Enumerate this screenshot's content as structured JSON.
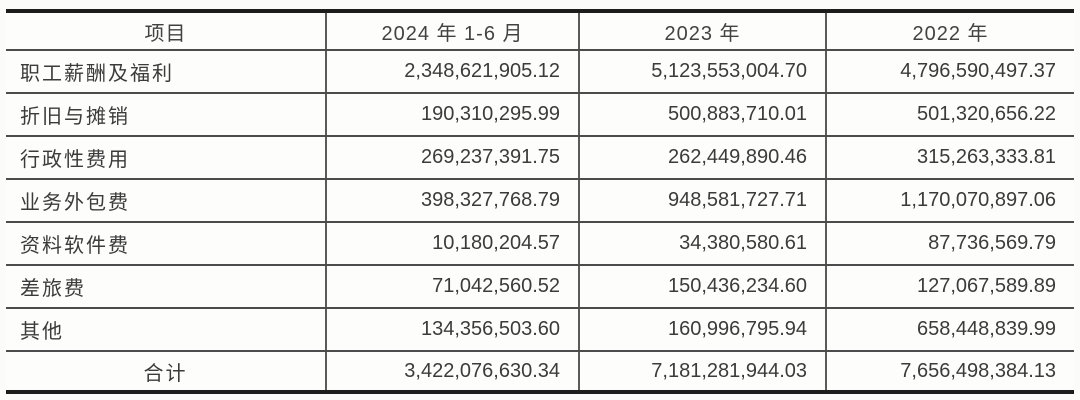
{
  "table": {
    "columns": [
      {
        "label": "项目"
      },
      {
        "label": "2024 年 1-6 月"
      },
      {
        "label": "2023 年"
      },
      {
        "label": "2022 年"
      }
    ],
    "rows": [
      {
        "item": "职工薪酬及福利",
        "values": [
          "2,348,621,905.12",
          "5,123,553,004.70",
          "4,796,590,497.37"
        ]
      },
      {
        "item": "折旧与摊销",
        "values": [
          "190,310,295.99",
          "500,883,710.01",
          "501,320,656.22"
        ]
      },
      {
        "item": "行政性费用",
        "values": [
          "269,237,391.75",
          "262,449,890.46",
          "315,263,333.81"
        ]
      },
      {
        "item": "业务外包费",
        "values": [
          "398,327,768.79",
          "948,581,727.71",
          "1,170,070,897.06"
        ]
      },
      {
        "item": "资料软件费",
        "values": [
          "10,180,204.57",
          "34,380,580.61",
          "87,736,569.79"
        ]
      },
      {
        "item": "差旅费",
        "values": [
          "71,042,560.52",
          "150,436,234.60",
          "127,067,589.89"
        ]
      },
      {
        "item": "其他",
        "values": [
          "134,356,503.60",
          "160,996,795.94",
          "658,448,839.99"
        ]
      }
    ],
    "total_row": {
      "item": "合计",
      "values": [
        "3,422,076,630.34",
        "7,181,281,944.03",
        "7,656,498,384.13"
      ]
    }
  },
  "colors": {
    "border_heavy": "#1d1d1d",
    "border_light": "#4c4c4c",
    "text": "#3b3b3b",
    "background": "#fbfbf9"
  }
}
